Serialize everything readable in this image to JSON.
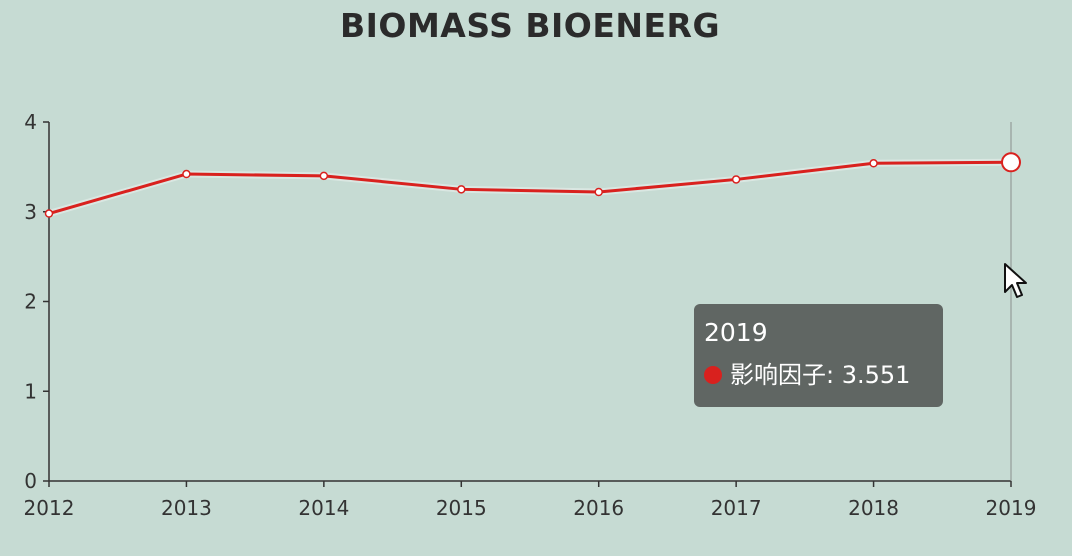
{
  "colors": {
    "background": "#c6dbd3",
    "line": "#d9211e",
    "axis": "#333333",
    "tooltip_bg": "#585c5a"
  },
  "chart_data": {
    "type": "line",
    "title": "BIOMASS BIOENERG",
    "x": [
      "2012",
      "2013",
      "2014",
      "2015",
      "2016",
      "2017",
      "2018",
      "2019"
    ],
    "series": [
      {
        "name": "影响因子",
        "values": [
          2.98,
          3.42,
          3.4,
          3.25,
          3.22,
          3.36,
          3.54,
          3.551
        ]
      }
    ],
    "y_ticks": [
      "0",
      "1",
      "2",
      "3",
      "4"
    ],
    "ylim": [
      0,
      4
    ],
    "grid": false,
    "legend": "none",
    "highlighted_index": 7
  },
  "tooltip": {
    "title": "2019",
    "series_label": "影响因子",
    "value": "3.551"
  }
}
